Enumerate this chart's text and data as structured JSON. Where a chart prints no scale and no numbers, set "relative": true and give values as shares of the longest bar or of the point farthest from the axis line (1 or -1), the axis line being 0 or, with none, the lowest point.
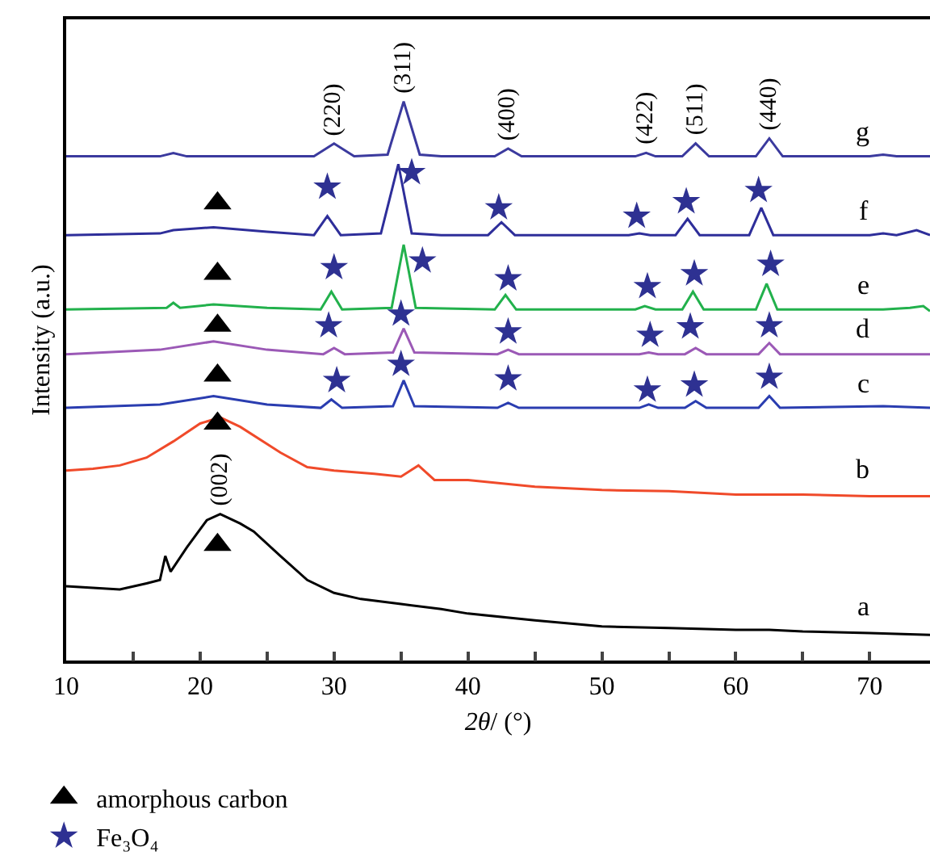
{
  "chart_data": {
    "type": "line",
    "relative": true,
    "xlabel": "2θ/ (°)",
    "ylabel": "Intensity (a.u.)",
    "xlim": [
      10,
      74.5
    ],
    "xticks": [
      10,
      {
        "value": 15,
        "label": null
      },
      20,
      {
        "value": 25,
        "label": null
      },
      30,
      {
        "value": 35,
        "label": null
      },
      40,
      {
        "value": 45,
        "label": null
      },
      50,
      {
        "value": 55,
        "label": null
      },
      60,
      {
        "value": 65,
        "label": null
      },
      70
    ],
    "marker": "none",
    "line_style": "solid",
    "legend": "bottom left",
    "series": [
      {
        "name": "g",
        "color": "#3b3a9e",
        "x": [
          10,
          17,
          18,
          19,
          28.5,
          30,
          31.5,
          34,
          35.2,
          36.4,
          38,
          42,
          43,
          44,
          52.5,
          53.3,
          54,
          56,
          57,
          58,
          61.5,
          62.5,
          63.5,
          70,
          71,
          72,
          74.5
        ],
        "values": [
          0.902,
          0.902,
          0.908,
          0.902,
          0.902,
          0.925,
          0.902,
          0.905,
          1.0,
          0.905,
          0.902,
          0.902,
          0.916,
          0.902,
          0.902,
          0.908,
          0.902,
          0.902,
          0.925,
          0.902,
          0.902,
          0.934,
          0.902,
          0.902,
          0.905,
          0.902,
          0.902
        ]
      },
      {
        "name": "f",
        "color": "#2e2e9a",
        "x": [
          10,
          17,
          18,
          21,
          25,
          28.5,
          29.5,
          30.5,
          33.5,
          34.8,
          35.8,
          38,
          41.5,
          42.5,
          43.5,
          52,
          52.8,
          53.6,
          55.5,
          56.4,
          57.3,
          61,
          61.9,
          62.8,
          70,
          71,
          72,
          73.5,
          74.5
        ],
        "values": [
          0.761,
          0.764,
          0.77,
          0.775,
          0.767,
          0.761,
          0.795,
          0.761,
          0.764,
          0.888,
          0.764,
          0.761,
          0.761,
          0.784,
          0.761,
          0.761,
          0.764,
          0.761,
          0.761,
          0.79,
          0.761,
          0.761,
          0.81,
          0.761,
          0.761,
          0.764,
          0.761,
          0.77,
          0.761
        ]
      },
      {
        "name": "e",
        "color": "#22b14c",
        "x": [
          10,
          17.5,
          18,
          18.5,
          21,
          25,
          29,
          29.8,
          30.6,
          34.3,
          35.2,
          36.1,
          42,
          42.8,
          43.6,
          52.5,
          53.2,
          54,
          56,
          56.8,
          57.6,
          61.5,
          62.3,
          63.1,
          71,
          73,
          74,
          74.5
        ],
        "values": [
          0.628,
          0.631,
          0.64,
          0.631,
          0.637,
          0.631,
          0.628,
          0.66,
          0.628,
          0.631,
          0.744,
          0.631,
          0.628,
          0.654,
          0.628,
          0.628,
          0.634,
          0.628,
          0.628,
          0.66,
          0.628,
          0.628,
          0.674,
          0.628,
          0.628,
          0.631,
          0.634,
          0.625
        ]
      },
      {
        "name": "d",
        "color": "#9b59b6",
        "x": [
          10,
          17,
          21,
          25,
          29.2,
          30,
          30.8,
          34.4,
          35.2,
          36,
          42.2,
          43,
          43.8,
          52.8,
          53.5,
          54.2,
          56.2,
          57,
          57.8,
          61.7,
          62.5,
          63.3,
          74.5
        ],
        "values": [
          0.548,
          0.556,
          0.571,
          0.556,
          0.548,
          0.559,
          0.548,
          0.551,
          0.594,
          0.551,
          0.548,
          0.556,
          0.548,
          0.548,
          0.551,
          0.548,
          0.548,
          0.559,
          0.548,
          0.548,
          0.568,
          0.548,
          0.548
        ]
      },
      {
        "name": "c",
        "color": "#2a3db0",
        "x": [
          10,
          17,
          21,
          25,
          29,
          29.8,
          30.6,
          34.4,
          35.2,
          36,
          42.2,
          43,
          43.8,
          52.8,
          53.5,
          54.2,
          56.2,
          57,
          57.8,
          61.7,
          62.5,
          63.3,
          71,
          74.5
        ],
        "values": [
          0.452,
          0.458,
          0.473,
          0.458,
          0.452,
          0.467,
          0.452,
          0.455,
          0.501,
          0.455,
          0.452,
          0.461,
          0.452,
          0.452,
          0.458,
          0.452,
          0.452,
          0.464,
          0.452,
          0.452,
          0.473,
          0.452,
          0.455,
          0.452
        ]
      },
      {
        "name": "b",
        "color": "#f04a2a",
        "x": [
          10,
          12,
          14,
          16,
          18,
          20,
          21.5,
          23,
          26,
          28,
          30,
          33,
          35,
          36.3,
          37.5,
          40,
          45,
          50,
          55,
          60,
          65,
          70,
          74.5
        ],
        "values": [
          0.34,
          0.343,
          0.349,
          0.363,
          0.392,
          0.424,
          0.435,
          0.418,
          0.372,
          0.346,
          0.34,
          0.334,
          0.329,
          0.349,
          0.323,
          0.323,
          0.311,
          0.305,
          0.303,
          0.297,
          0.297,
          0.294,
          0.294
        ]
      },
      {
        "name": "a",
        "color": "#000000",
        "x": [
          10,
          12,
          14,
          16,
          17,
          17.4,
          17.8,
          19,
          20.5,
          21.5,
          23,
          24,
          26,
          28,
          30,
          32,
          35,
          38,
          40,
          45,
          50,
          55,
          60,
          62.5,
          65,
          70,
          74.5
        ],
        "values": [
          0.133,
          0.13,
          0.127,
          0.138,
          0.144,
          0.187,
          0.159,
          0.202,
          0.251,
          0.262,
          0.245,
          0.231,
          0.187,
          0.144,
          0.121,
          0.11,
          0.101,
          0.092,
          0.084,
          0.072,
          0.061,
          0.058,
          0.055,
          0.055,
          0.052,
          0.049,
          0.046
        ]
      },
      {
        "name": "amorphous carbon",
        "type": "scatter",
        "marker": "triangle",
        "color": "#000000",
        "x": [
          21.3,
          21.3,
          21.3,
          21.3,
          21.3,
          21.3
        ],
        "values": [
          0.818,
          0.692,
          0.599,
          0.51,
          0.424,
          0.207
        ]
      },
      {
        "name": "Fe₃O₄",
        "type": "scatter",
        "marker": "star",
        "color": "#2e3192",
        "x": [
          29.5,
          35.8,
          42.3,
          52.6,
          56.3,
          61.7,
          30,
          36.6,
          43,
          53.4,
          56.9,
          62.6,
          29.6,
          35,
          43,
          53.6,
          56.6,
          62.5,
          30.2,
          35,
          43,
          53.4,
          56.9,
          62.5
        ],
        "values": [
          0.847,
          0.873,
          0.81,
          0.795,
          0.821,
          0.841,
          0.703,
          0.715,
          0.683,
          0.669,
          0.692,
          0.709,
          0.599,
          0.62,
          0.588,
          0.582,
          0.597,
          0.599,
          0.501,
          0.53,
          0.504,
          0.484,
          0.493,
          0.507
        ]
      }
    ],
    "annotations": [
      {
        "text": "(220)",
        "x": 30,
        "y": 0.925
      },
      {
        "text": "(311)",
        "x": 35.2,
        "y": 1.0
      },
      {
        "text": "(400)",
        "x": 43,
        "y": 0.916
      },
      {
        "text": "(422)",
        "x": 53.3,
        "y": 0.908
      },
      {
        "text": "(511)",
        "x": 57,
        "y": 0.925
      },
      {
        "text": "(440)",
        "x": 62.5,
        "y": 0.934
      },
      {
        "text": "(002)",
        "x": 21.5,
        "y": 0.262
      }
    ]
  }
}
